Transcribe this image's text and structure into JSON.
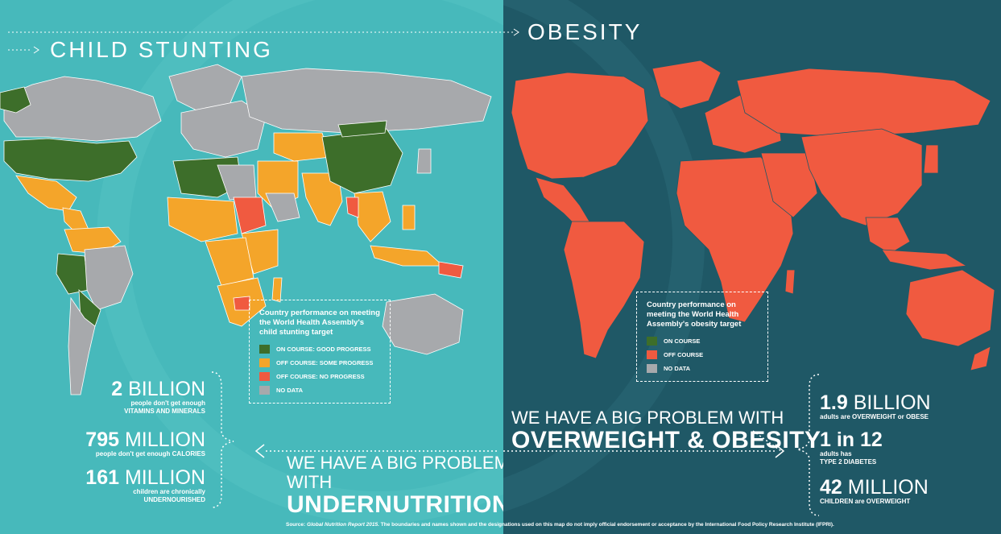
{
  "colors": {
    "left_bg": "#47b9bb",
    "right_bg": "#1f5866",
    "on_course": "#3d6e2a",
    "off_course_some": "#f4a52a",
    "off_course_no": "#f05a40",
    "no_data": "#a7a9ac",
    "obesity_off": "#f05a40"
  },
  "stunting": {
    "heading": "CHILD STUNTING",
    "legend_title": "Country performance on meeting the World Health Assembly's child stunting target",
    "legend_items": [
      "ON COURSE: GOOD PROGRESS",
      "OFF COURSE: SOME PROGRESS",
      "OFF COURSE: NO PROGRESS",
      "NO DATA"
    ],
    "stats": [
      {
        "big_num": "2",
        "big_unit": "BILLION",
        "line1": "people don't get enough",
        "line2": "VITAMINS AND MINERALS"
      },
      {
        "big_num": "795",
        "big_unit": "MILLION",
        "line1": "people don't get enough CALORIES",
        "line2": ""
      },
      {
        "big_num": "161",
        "big_unit": "MILLION",
        "line1": "children are chronically",
        "line2": "UNDERNOURISHED"
      }
    ],
    "banner_l1": "WE HAVE A BIG PROBLEM WITH",
    "banner_l2": "UNDERNUTRITION"
  },
  "obesity": {
    "heading": "OBESITY",
    "legend_title": "Country performance on meeting the World Health Assembly's obesity target",
    "legend_items": [
      "ON COURSE",
      "OFF COURSE",
      "NO DATA"
    ],
    "stats": [
      {
        "big_num": "1.9",
        "big_unit": "BILLION",
        "line1": "adults are OVERWEIGHT or OBESE",
        "line2": ""
      },
      {
        "big_num": "1 in 12",
        "big_unit": "",
        "line1": "adults has",
        "line2": "TYPE 2 DIABETES"
      },
      {
        "big_num": "42",
        "big_unit": "MILLION",
        "line1": "CHILDREN are OVERWEIGHT",
        "line2": ""
      }
    ],
    "banner_l1": "WE HAVE A BIG PROBLEM WITH",
    "banner_l2": "OVERWEIGHT & OBESITY"
  },
  "source_label": "Source:",
  "source_report": "Global Nutrition Report 2015.",
  "source_rest": "The boundaries and names shown and the designations used on this map do not imply official endorsement or acceptance by the International Food Policy Research Institute (IFPRI)."
}
